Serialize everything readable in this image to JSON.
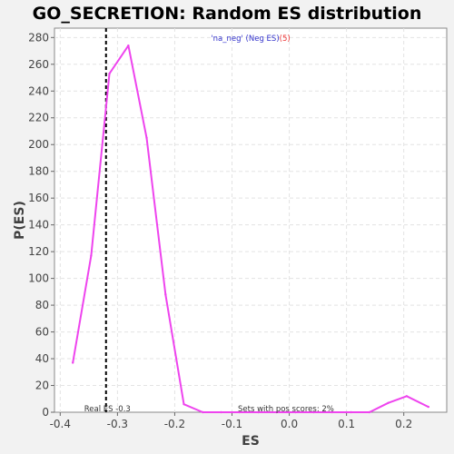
{
  "chart_data": {
    "type": "line",
    "title": "GO_SECRETION: Random ES distribution",
    "xlabel": "ES",
    "ylabel": "P(ES)",
    "xlim": [
      -0.41,
      0.275
    ],
    "ylim": [
      0,
      287
    ],
    "x_ticks": [
      -0.4,
      -0.3,
      -0.2,
      -0.1,
      0.0,
      0.1,
      0.2
    ],
    "x_tick_labels": [
      "-0.4",
      "-0.3",
      "-0.2",
      "-0.1",
      "0.0",
      "0.1",
      "0.2"
    ],
    "y_ticks": [
      0,
      20,
      40,
      60,
      80,
      100,
      120,
      140,
      160,
      180,
      200,
      220,
      240,
      260,
      280
    ],
    "y_tick_labels": [
      "0",
      "20",
      "40",
      "60",
      "80",
      "100",
      "120",
      "140",
      "160",
      "180",
      "200",
      "220",
      "240",
      "260",
      "280"
    ],
    "grid": true,
    "series": [
      {
        "color": "#ee44ee",
        "x": [
          -0.378,
          -0.346,
          -0.314,
          -0.281,
          -0.249,
          -0.216,
          -0.184,
          -0.151,
          -0.119,
          -0.087,
          -0.054,
          -0.022,
          0.011,
          0.043,
          0.075,
          0.108,
          0.14,
          0.173,
          0.205,
          0.243
        ],
        "y": [
          37,
          117,
          253,
          274,
          205,
          88,
          6,
          0,
          0,
          0,
          0,
          0,
          0,
          0,
          0,
          0,
          0,
          7,
          12,
          4
        ]
      }
    ],
    "real_es": {
      "x": -0.32,
      "label": "Real ES -0.3"
    },
    "legend": {
      "main": "'na_neg' (Neg ES)",
      "suffix": "(5)",
      "main_color": "#3333cc",
      "suffix_color": "#ee3333"
    },
    "annotation": "Sets with pos scores: 2%"
  }
}
